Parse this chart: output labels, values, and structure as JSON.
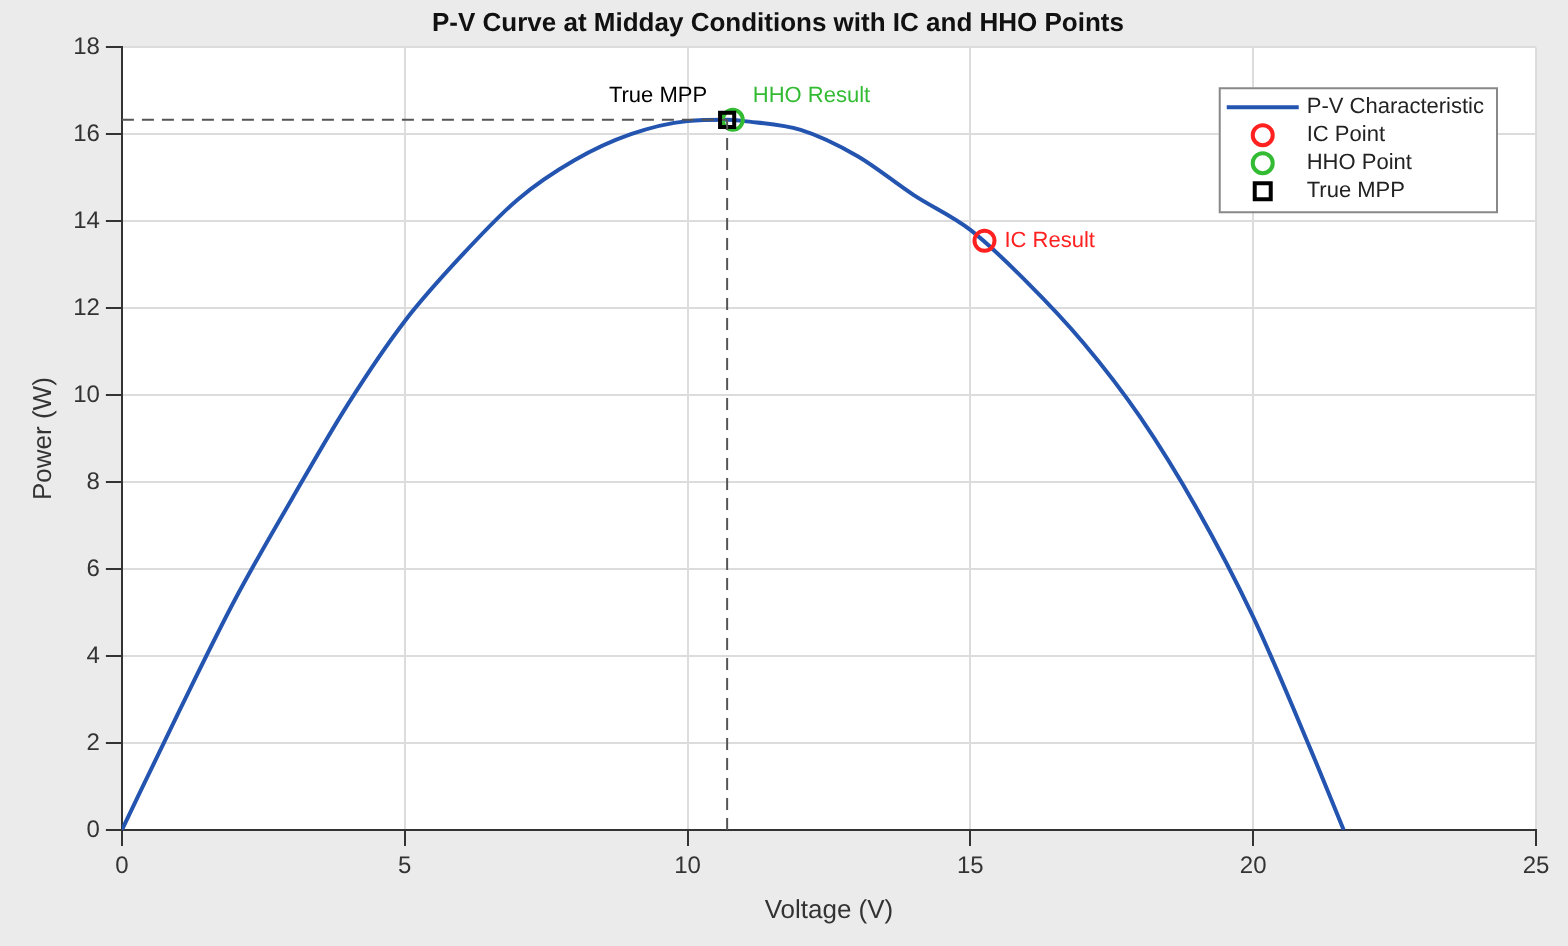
{
  "chart_data": {
    "type": "line",
    "title": "P-V Curve at Midday Conditions with IC and HHO Points",
    "xlabel": "Voltage (V)",
    "ylabel": "Power (W)",
    "series": [
      {
        "name": "P-V Characteristic",
        "type": "line",
        "color": "#2354b0",
        "marker": "none",
        "x": [
          0,
          1,
          2,
          3,
          4,
          5,
          6,
          7,
          8,
          9,
          10,
          10.7,
          11,
          12,
          13,
          14,
          15,
          16,
          17,
          18,
          19,
          20,
          21,
          21.6
        ],
        "values": [
          0,
          2.7,
          5.3,
          7.6,
          9.8,
          11.7,
          13.2,
          14.5,
          15.4,
          16.0,
          16.3,
          16.33,
          16.3,
          16.1,
          15.5,
          14.6,
          13.8,
          12.6,
          11.2,
          9.5,
          7.4,
          4.9,
          1.9,
          0
        ]
      },
      {
        "name": "IC Point",
        "type": "scatter",
        "color": "#ff2020",
        "marker": "circle",
        "x": [
          15.25
        ],
        "values": [
          13.55
        ]
      },
      {
        "name": "HHO Point",
        "type": "scatter",
        "color": "#33bb33",
        "marker": "circle",
        "x": [
          10.8
        ],
        "values": [
          16.33
        ]
      },
      {
        "name": "True MPP",
        "type": "scatter",
        "color": "#000000",
        "marker": "square",
        "x": [
          10.7
        ],
        "values": [
          16.33
        ]
      }
    ],
    "annotations": [
      {
        "text": "IC Result",
        "x": 15.25,
        "y": 13.55
      },
      {
        "text": "HHO Result",
        "x": 10.8,
        "y": 16.33
      },
      {
        "text": "True MPP",
        "x": 10.7,
        "y": 16.33
      }
    ],
    "ref_lines": [
      {
        "axis": "x",
        "value": 10.7,
        "color": "#555555",
        "line_style": "dashed"
      },
      {
        "axis": "y",
        "value": 16.33,
        "color": "#555555",
        "line_style": "dashed"
      }
    ],
    "xlim": [
      0,
      25
    ],
    "xticks": [
      0,
      5,
      10,
      15,
      20,
      25
    ],
    "ylim": [
      0,
      18
    ],
    "yticks": [
      0,
      2,
      4,
      6,
      8,
      10,
      12,
      14,
      16,
      18
    ],
    "grid": true,
    "legend": "top right"
  }
}
